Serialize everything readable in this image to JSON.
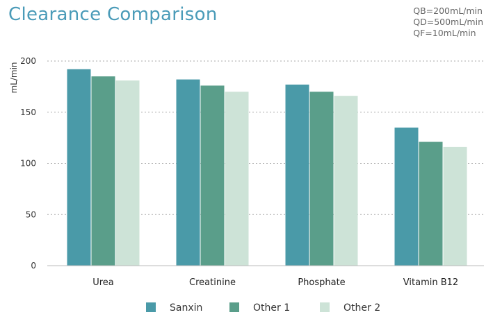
{
  "title": "Clearance Comparison",
  "params": [
    "QB=200mL/min",
    "QD=500mL/min",
    "QF=10mL/min"
  ],
  "chart_data": {
    "type": "bar",
    "title": "Clearance Comparison",
    "ylabel": "mL/min",
    "xlabel": "",
    "categories": [
      "Urea",
      "Creatinine",
      "Phosphate",
      "Vitamin B12"
    ],
    "ylim": [
      0,
      200
    ],
    "yticks": [
      0,
      50,
      100,
      150,
      200
    ],
    "grid": true,
    "legend_position": "bottom",
    "series": [
      {
        "name": "Sanxin",
        "color": "#4a9aa8",
        "values": [
          192,
          182,
          177,
          135
        ]
      },
      {
        "name": "Other 1",
        "color": "#5a9e8a",
        "values": [
          185,
          176,
          170,
          121
        ]
      },
      {
        "name": "Other 2",
        "color": "#cde3d7",
        "values": [
          181,
          170,
          166,
          116
        ]
      }
    ]
  }
}
